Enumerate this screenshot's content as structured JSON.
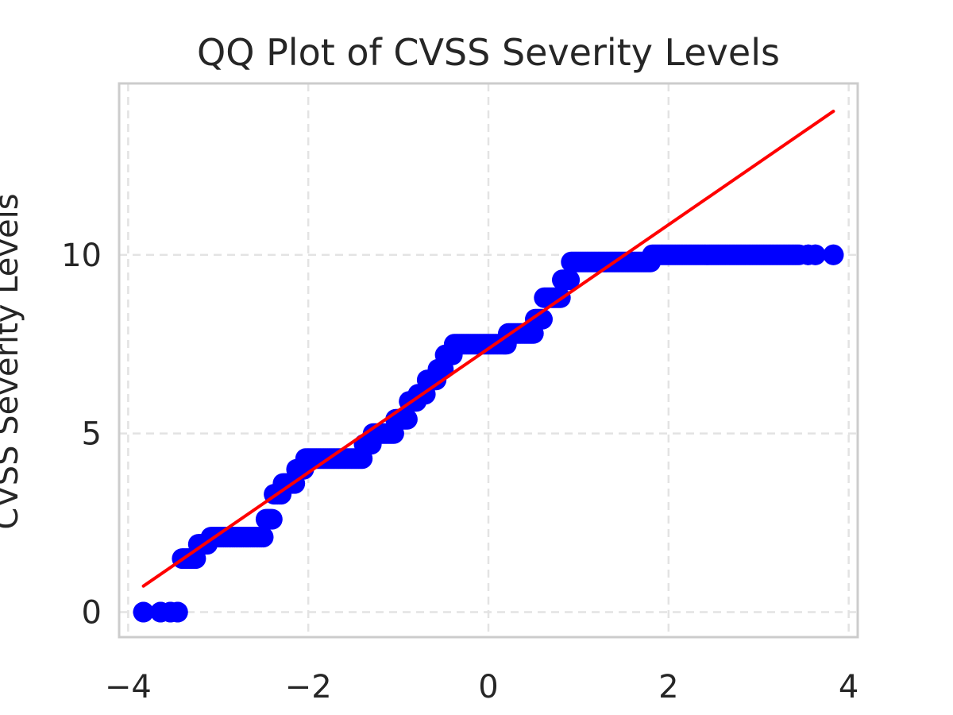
{
  "chart_data": {
    "type": "scatter",
    "title": "QQ Plot of CVSS Severity Levels",
    "xlabel": "",
    "ylabel": "CVSS Severity Levels",
    "xlim": [
      -4.1,
      4.1
    ],
    "ylim": [
      -0.7,
      14.8
    ],
    "xticks": [
      -4,
      -2,
      0,
      2,
      4
    ],
    "xtick_labels": [
      "−4",
      "−2",
      "0",
      "2",
      "4"
    ],
    "yticks": [
      0,
      5,
      10
    ],
    "ytick_labels": [
      "0",
      "5",
      "10"
    ],
    "grid": true,
    "legend": "none",
    "point_color": "#0000ff",
    "line_color": "#ff0000",
    "series": [
      {
        "kind": "points",
        "steps": [
          {
            "x0": -3.83,
            "x1": -3.83,
            "y": 0.0
          },
          {
            "x0": -3.64,
            "x1": -3.64,
            "y": 0.0
          },
          {
            "x0": -3.53,
            "x1": -3.53,
            "y": 0.0
          },
          {
            "x0": -3.45,
            "x1": -3.45,
            "y": 0.0
          },
          {
            "x0": -3.4,
            "x1": -3.25,
            "y": 1.5
          },
          {
            "x0": -3.22,
            "x1": -3.12,
            "y": 1.9
          },
          {
            "x0": -3.08,
            "x1": -2.5,
            "y": 2.1
          },
          {
            "x0": -2.47,
            "x1": -2.4,
            "y": 2.6
          },
          {
            "x0": -2.38,
            "x1": -2.3,
            "y": 3.3
          },
          {
            "x0": -2.28,
            "x1": -2.15,
            "y": 3.6
          },
          {
            "x0": -2.13,
            "x1": -2.05,
            "y": 4.0
          },
          {
            "x0": -2.03,
            "x1": -1.4,
            "y": 4.3
          },
          {
            "x0": -1.38,
            "x1": -1.3,
            "y": 4.7
          },
          {
            "x0": -1.28,
            "x1": -1.05,
            "y": 5.0
          },
          {
            "x0": -1.03,
            "x1": -0.9,
            "y": 5.4
          },
          {
            "x0": -0.88,
            "x1": -0.8,
            "y": 5.9
          },
          {
            "x0": -0.78,
            "x1": -0.7,
            "y": 6.1
          },
          {
            "x0": -0.68,
            "x1": -0.58,
            "y": 6.5
          },
          {
            "x0": -0.56,
            "x1": -0.5,
            "y": 6.8
          },
          {
            "x0": -0.48,
            "x1": -0.4,
            "y": 7.2
          },
          {
            "x0": -0.38,
            "x1": 0.2,
            "y": 7.5
          },
          {
            "x0": 0.22,
            "x1": 0.5,
            "y": 7.8
          },
          {
            "x0": 0.52,
            "x1": 0.6,
            "y": 8.2
          },
          {
            "x0": 0.62,
            "x1": 0.8,
            "y": 8.8
          },
          {
            "x0": 0.82,
            "x1": 0.9,
            "y": 9.3
          },
          {
            "x0": 0.92,
            "x1": 1.8,
            "y": 9.8
          },
          {
            "x0": 1.82,
            "x1": 3.45,
            "y": 10.0
          },
          {
            "x0": 3.55,
            "x1": 3.55,
            "y": 10.0
          },
          {
            "x0": 3.63,
            "x1": 3.63,
            "y": 10.0
          },
          {
            "x0": 3.83,
            "x1": 3.83,
            "y": 10.0
          }
        ]
      },
      {
        "kind": "line",
        "x": [
          -3.83,
          3.83
        ],
        "y": [
          0.73,
          14.02
        ]
      }
    ]
  }
}
